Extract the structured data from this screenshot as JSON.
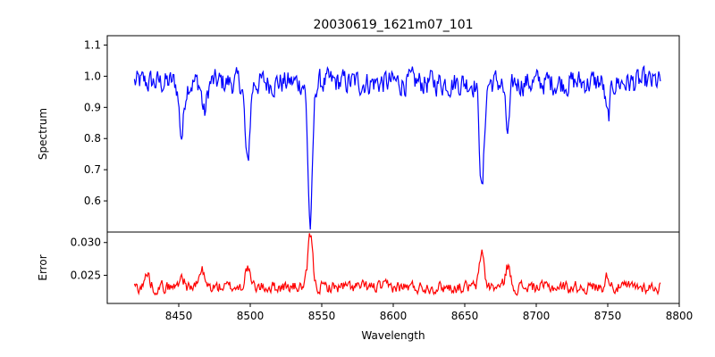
{
  "chart_data": [
    {
      "type": "line",
      "title": "20030619_1621m07_101",
      "xlabel": "",
      "ylabel": "Spectrum",
      "xlim": [
        8400,
        8800
      ],
      "ylim": [
        0.5,
        1.13
      ],
      "yticks": [
        0.6,
        0.7,
        0.8,
        0.9,
        1.0,
        1.1
      ],
      "ytick_labels": [
        "0.6",
        "0.7",
        "0.8",
        "0.9",
        "1.0",
        "1.1"
      ],
      "series": [
        {
          "color": "#0000ff",
          "x_range": [
            8419,
            8787
          ],
          "baseline": 0.98,
          "noise_amplitude": 0.035,
          "features": [
            {
              "center": 8452,
              "depth": 0.17
            },
            {
              "center": 8468,
              "depth": 0.1
            },
            {
              "center": 8498,
              "depth": 0.27
            },
            {
              "center": 8542,
              "depth": 0.46
            },
            {
              "center": 8662,
              "depth": 0.35
            },
            {
              "center": 8680,
              "depth": 0.16
            },
            {
              "center": 8750,
              "depth": 0.12
            }
          ]
        }
      ]
    },
    {
      "type": "line",
      "title": "",
      "xlabel": "Wavelength",
      "ylabel": "Error",
      "xlim": [
        8400,
        8800
      ],
      "ylim": [
        0.0207,
        0.0316
      ],
      "xticks": [
        8450,
        8500,
        8550,
        8600,
        8650,
        8700,
        8750,
        8800
      ],
      "xtick_labels": [
        "8450",
        "8500",
        "8550",
        "8600",
        "8650",
        "8700",
        "8750",
        "8800"
      ],
      "yticks": [
        0.025,
        0.03
      ],
      "ytick_labels": [
        "0.025",
        "0.030"
      ],
      "series": [
        {
          "color": "#ff0000",
          "x_range": [
            8419,
            8787
          ],
          "baseline": 0.0232,
          "noise_amplitude": 0.0008,
          "features": [
            {
              "center": 8428,
              "height": 0.002
            },
            {
              "center": 8452,
              "height": 0.0018
            },
            {
              "center": 8466,
              "height": 0.0027
            },
            {
              "center": 8498,
              "height": 0.003
            },
            {
              "center": 8542,
              "height": 0.0079
            },
            {
              "center": 8662,
              "height": 0.0055
            },
            {
              "center": 8680,
              "height": 0.0033
            },
            {
              "center": 8750,
              "height": 0.0018
            }
          ]
        }
      ]
    }
  ]
}
